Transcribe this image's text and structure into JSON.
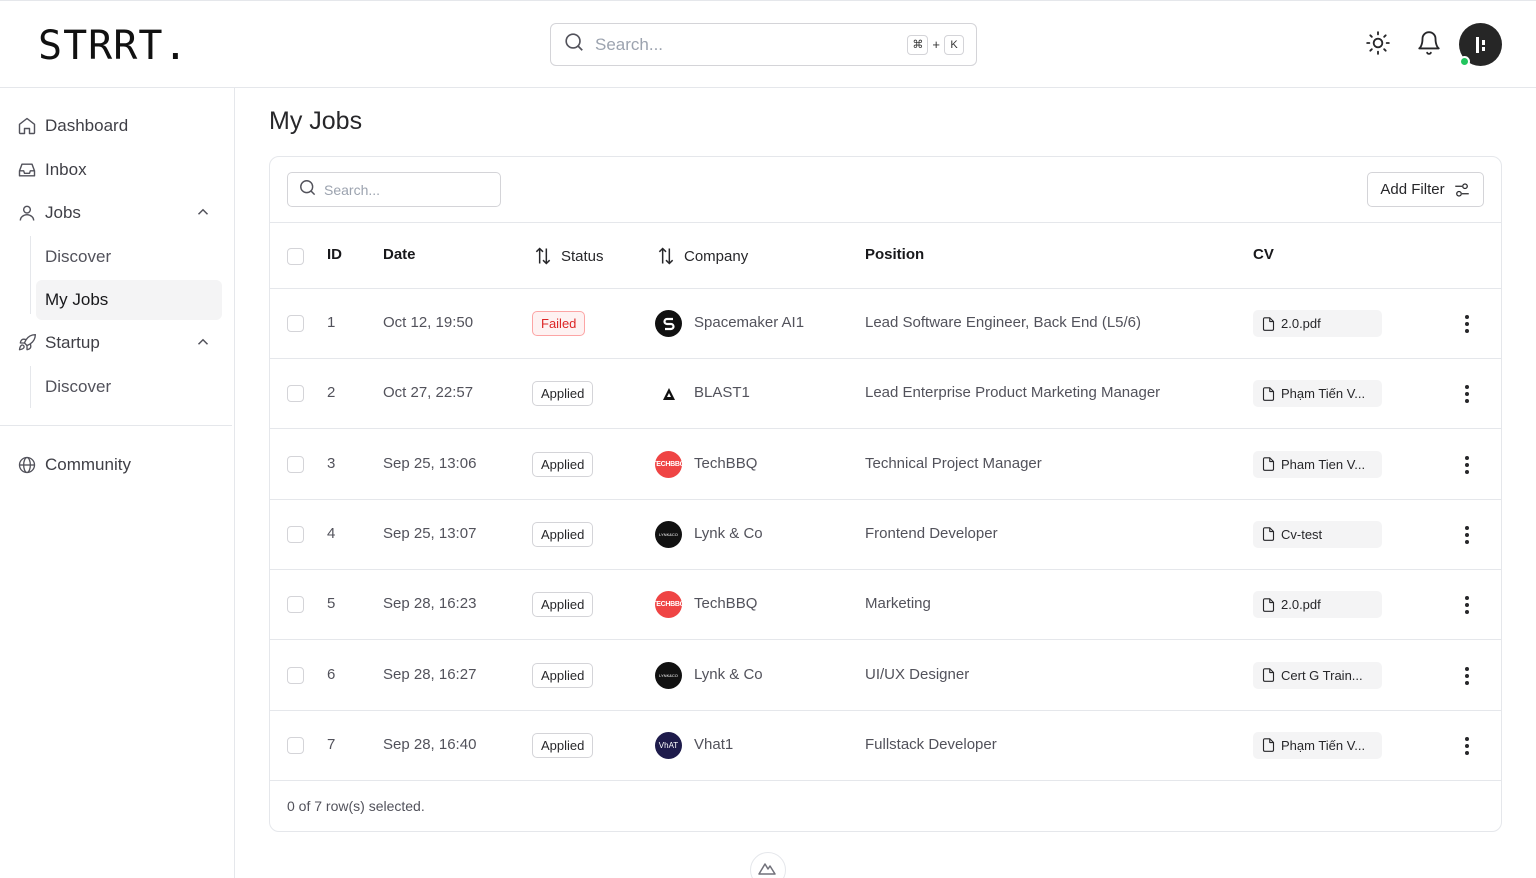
{
  "header": {
    "logo": "STRRT.",
    "search_placeholder": "Search...",
    "shortcut_key1": "⌘",
    "shortcut_plus": "+",
    "shortcut_key2": "K"
  },
  "sidebar": {
    "items": [
      {
        "label": "Dashboard",
        "icon": "home-icon"
      },
      {
        "label": "Inbox",
        "icon": "inbox-icon"
      },
      {
        "label": "Jobs",
        "icon": "user-icon",
        "expanded": true,
        "children": [
          "Discover",
          "My Jobs"
        ]
      },
      {
        "label": "Startup",
        "icon": "rocket-icon",
        "expanded": true,
        "children": [
          "Discover"
        ]
      },
      {
        "label": "Community",
        "icon": "globe-icon"
      }
    ],
    "jobs_sub": [
      "Discover",
      "My Jobs"
    ],
    "startup_sub": [
      "Discover"
    ],
    "active": "My Jobs"
  },
  "main": {
    "title": "My Jobs",
    "search_placeholder": "Search...",
    "add_filter_label": "Add Filter",
    "columns": [
      "ID",
      "Date",
      "Status",
      "Company",
      "Position",
      "CV"
    ],
    "rows": [
      {
        "id": "1",
        "date": "Oct 12, 19:50",
        "status": "Failed",
        "company": "Spacemaker AI1",
        "position": "Lead Software Engineer, Back End (L5/6)",
        "cv": "2.0.pdf"
      },
      {
        "id": "2",
        "date": "Oct 27, 22:57",
        "status": "Applied",
        "company": "BLAST1",
        "position": "Lead Enterprise Product Marketing Manager",
        "cv": "Phạm Tiến V..."
      },
      {
        "id": "3",
        "date": "Sep 25, 13:06",
        "status": "Applied",
        "company": "TechBBQ",
        "position": "Technical Project Manager",
        "cv": "Pham Tien V..."
      },
      {
        "id": "4",
        "date": "Sep 25, 13:07",
        "status": "Applied",
        "company": "Lynk & Co",
        "position": "Frontend Developer",
        "cv": "Cv-test"
      },
      {
        "id": "5",
        "date": "Sep 28, 16:23",
        "status": "Applied",
        "company": "TechBBQ",
        "position": "Marketing",
        "cv": "2.0.pdf"
      },
      {
        "id": "6",
        "date": "Sep 28, 16:27",
        "status": "Applied",
        "company": "Lynk & Co",
        "position": "UI/UX Designer",
        "cv": "Cert G Train..."
      },
      {
        "id": "7",
        "date": "Sep 28, 16:40",
        "status": "Applied",
        "company": "Vhat1",
        "position": "Fullstack Developer",
        "cv": "Phạm Tiến V..."
      }
    ],
    "selection_text": "0 of 7 row(s) selected."
  },
  "colors": {
    "failed": "#dc2626",
    "online": "#22c55e",
    "techbbq": "#ef4444",
    "vhat": "#1e1b4b"
  }
}
